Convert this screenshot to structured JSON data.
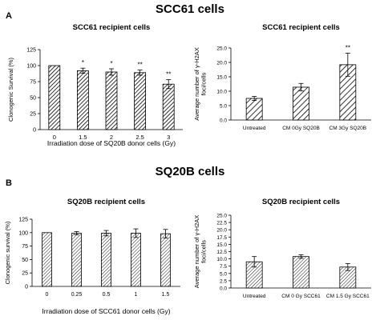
{
  "figure": {
    "panel_a": {
      "letter": "A",
      "title": "SCC61 cells"
    },
    "panel_b": {
      "letter": "B",
      "title": "SQ20B cells"
    }
  },
  "colors": {
    "bar_stroke": "#000000",
    "hatch": "#000000",
    "axis": "#000000",
    "text": "#000000"
  },
  "chart_data": [
    {
      "id": "a-left",
      "type": "bar",
      "title": "SCC61 recipient cells",
      "xlabel": "Irradiation dose of SQ20B donor cells (Gy)",
      "ylabel": "Clonogenic Survival (%)",
      "categories": [
        "0",
        "1.5",
        "2",
        "2.5",
        "3"
      ],
      "values": [
        100,
        92,
        90,
        89,
        71
      ],
      "errors": [
        0,
        4,
        5,
        4,
        7
      ],
      "annotations": [
        "",
        "*",
        "*",
        "**",
        "**"
      ],
      "ylim": [
        0,
        125
      ],
      "yticks": [
        0,
        25,
        50,
        75,
        100,
        125
      ],
      "ytick_labels": [
        "0",
        "25",
        "50",
        "75",
        "100",
        "125"
      ],
      "fill": "hatch-dense",
      "grid": false
    },
    {
      "id": "a-right",
      "type": "bar",
      "title": "SCC61 recipient cells",
      "xlabel": "",
      "ylabel": "Average number of γ-H2AX foci/cells",
      "categories": [
        "Untreated",
        "CM 0Gy SQ20B",
        "CM 3Gy SQ20B"
      ],
      "values": [
        7.5,
        11.4,
        19.2
      ],
      "errors": [
        0.7,
        1.3,
        4.0
      ],
      "annotations": [
        "",
        "",
        "**"
      ],
      "ylim": [
        0,
        25
      ],
      "yticks": [
        0,
        5,
        10,
        15,
        20,
        25
      ],
      "ytick_labels": [
        "0.0",
        "5.0",
        "10.0",
        "15.0",
        "20.0",
        "25.0"
      ],
      "fill": "hatch-wide",
      "grid": false
    },
    {
      "id": "b-left",
      "type": "bar",
      "title": "SQ20B recipient cells",
      "xlabel": "Irradiation dose of SCC61 donor cells (Gy)",
      "ylabel": "Clonogenic survival (%)",
      "categories": [
        "0",
        "0.25",
        "0.5",
        "1",
        "1.5"
      ],
      "values": [
        100,
        99,
        99,
        99,
        98
      ],
      "errors": [
        0,
        3,
        5,
        8,
        8
      ],
      "annotations": [
        "",
        "",
        "",
        "",
        ""
      ],
      "ylim": [
        0,
        125
      ],
      "yticks": [
        0,
        25,
        50,
        75,
        100,
        125
      ],
      "ytick_labels": [
        "0",
        "25",
        "50",
        "75",
        "100",
        "125"
      ],
      "fill": "hatch-fine",
      "grid": false
    },
    {
      "id": "b-right",
      "type": "bar",
      "title": "SQ20B recipient cells",
      "xlabel": "",
      "ylabel": "Average number of γ-H2AX foci/cells",
      "categories": [
        "Untreated",
        "CM 0 Gy SCC61",
        "CM 1.5 Gy SCC61"
      ],
      "values": [
        9.0,
        10.8,
        7.2
      ],
      "errors": [
        1.8,
        0.6,
        1.2
      ],
      "annotations": [
        "",
        "",
        ""
      ],
      "ylim": [
        0,
        25
      ],
      "yticks": [
        0,
        2.5,
        5,
        7.5,
        10,
        12.5,
        15,
        17.5,
        20,
        22.5,
        25
      ],
      "ytick_labels": [
        "0.0",
        "2.5",
        "5.0",
        "7.5",
        "10.0",
        "12.5",
        "15.0",
        "17.5",
        "20.0",
        "22.5",
        "25.0"
      ],
      "fill": "hatch-fine",
      "grid": false
    }
  ]
}
